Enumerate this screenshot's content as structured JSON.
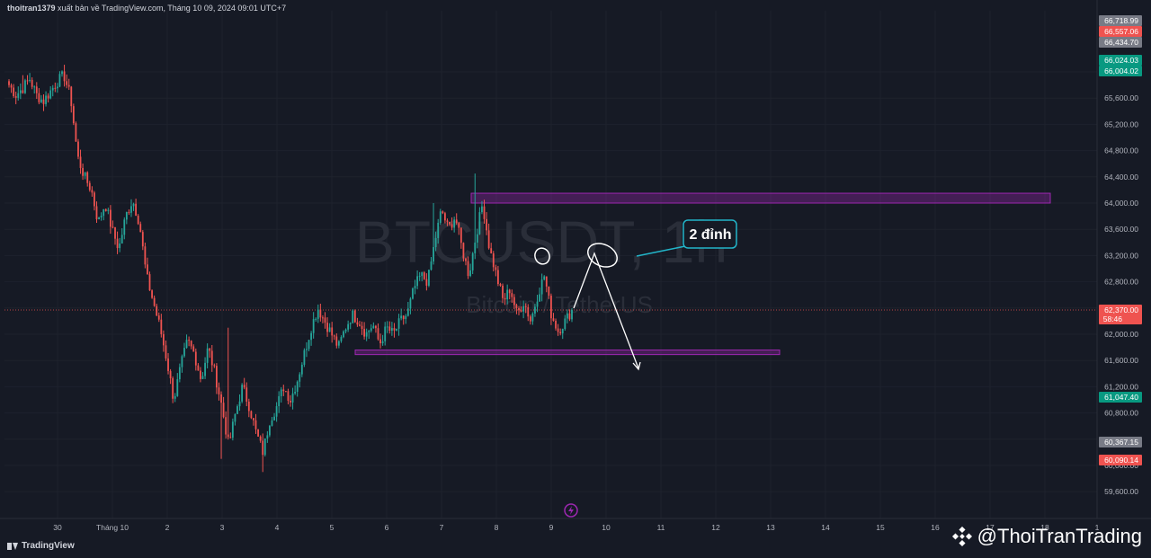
{
  "header": {
    "author": "thoitran1379",
    "text": "xuất bản về TradingView.com, Tháng 10 09, 2024 09:01 UTC+7"
  },
  "watermark": {
    "symbol": "BTCUSDT, 1h",
    "name": "Bitcoin / TetherUS"
  },
  "footer": {
    "platform": "TradingView",
    "handle": "@ThoiTranTrading"
  },
  "colors": {
    "background": "#161a25",
    "up": "#26a69a",
    "down": "#ef5350",
    "zone": "#9c27b0",
    "annotation": "#ffffff",
    "callout_border": "#22b5c9"
  },
  "annotation": {
    "label": "2 đỉnh"
  },
  "chart_data": {
    "type": "candlestick",
    "symbol": "BTCUSDT",
    "interval": "1h",
    "ylim": [
      59400,
      66800
    ],
    "y_ticks": [
      59600,
      60000,
      60400,
      60800,
      61200,
      61600,
      62000,
      62400,
      62800,
      63200,
      63600,
      64000,
      64400,
      64800,
      65200,
      65600,
      66000
    ],
    "y_tick_labels": [
      "59,600.00",
      "60,000.00",
      "60,400.00",
      "60,800.00",
      "61,200.00",
      "61,600.00",
      "62,000.00",
      "62,400.00",
      "62,800.00",
      "63,200.00",
      "63,600.00",
      "64,000.00",
      "64,400.00",
      "64,800.00",
      "65,200.00",
      "65,600.00",
      "66,000.00"
    ],
    "x_labels": [
      "30",
      "Tháng 10",
      "2",
      "3",
      "4",
      "5",
      "6",
      "7",
      "8",
      "9",
      "10",
      "11",
      "12",
      "13",
      "14",
      "15",
      "16",
      "17",
      "18",
      "1"
    ],
    "price_badges": [
      {
        "value": "66,718.99",
        "color": "#787b86"
      },
      {
        "value": "66,557.06",
        "color": "#ef5350"
      },
      {
        "value": "66,434.70",
        "color": "#787b86"
      },
      {
        "value": "66,024.03",
        "color": "#089981"
      },
      {
        "value": "66,004.02",
        "color": "#089981"
      },
      {
        "value": "62,370.00",
        "color": "#ef5350",
        "sub": "58:46"
      },
      {
        "value": "61,047.40",
        "color": "#089981"
      },
      {
        "value": "60,367.15",
        "color": "#787b86"
      },
      {
        "value": "60,090.14",
        "color": "#ef5350"
      }
    ],
    "current_price": 62370,
    "resistance_zone": [
      64000,
      64150
    ],
    "support_zone": [
      61690,
      61760
    ],
    "path": [
      [
        0,
        65800
      ],
      [
        1,
        65650
      ],
      [
        2,
        65750
      ],
      [
        3,
        65900
      ],
      [
        4,
        65650
      ],
      [
        5,
        65550
      ],
      [
        6,
        65700
      ],
      [
        7,
        65850
      ],
      [
        8,
        65950
      ],
      [
        9,
        65600
      ],
      [
        10,
        64700
      ],
      [
        11,
        64400
      ],
      [
        12,
        64200
      ],
      [
        13,
        63700
      ],
      [
        14,
        64000
      ],
      [
        15,
        63600
      ],
      [
        16,
        63300
      ],
      [
        17,
        63800
      ],
      [
        18,
        64050
      ],
      [
        19,
        63700
      ],
      [
        20,
        62900
      ],
      [
        21,
        62500
      ],
      [
        22,
        62100
      ],
      [
        23,
        61600
      ],
      [
        24,
        61000
      ],
      [
        25,
        61500
      ],
      [
        26,
        61900
      ],
      [
        27,
        61700
      ],
      [
        28,
        61300
      ],
      [
        29,
        61800
      ],
      [
        30,
        61400
      ],
      [
        31,
        60900
      ],
      [
        32,
        60300
      ],
      [
        33,
        60800
      ],
      [
        34,
        61200
      ],
      [
        35,
        60900
      ],
      [
        36,
        60500
      ],
      [
        37,
        60200
      ],
      [
        38,
        60700
      ],
      [
        39,
        60900
      ],
      [
        40,
        61200
      ],
      [
        41,
        61000
      ],
      [
        42,
        61300
      ],
      [
        43,
        61700
      ],
      [
        44,
        62100
      ],
      [
        45,
        62400
      ],
      [
        46,
        62200
      ],
      [
        47,
        62000
      ],
      [
        48,
        61800
      ],
      [
        49,
        62100
      ],
      [
        50,
        62300
      ],
      [
        51,
        62200
      ],
      [
        52,
        62000
      ],
      [
        53,
        62150
      ],
      [
        54,
        61850
      ],
      [
        55,
        62100
      ],
      [
        56,
        62000
      ],
      [
        57,
        62200
      ],
      [
        58,
        62300
      ],
      [
        59,
        62700
      ],
      [
        60,
        62900
      ],
      [
        61,
        62800
      ],
      [
        62,
        63400
      ],
      [
        63,
        63900
      ],
      [
        64,
        63600
      ],
      [
        65,
        63800
      ],
      [
        66,
        63300
      ],
      [
        67,
        62900
      ],
      [
        68,
        63500
      ],
      [
        69,
        64000
      ],
      [
        70,
        63300
      ],
      [
        71,
        62900
      ],
      [
        72,
        62500
      ],
      [
        73,
        62700
      ],
      [
        74,
        62300
      ],
      [
        75,
        62500
      ],
      [
        76,
        62200
      ],
      [
        77,
        62600
      ],
      [
        78,
        62900
      ],
      [
        79,
        62300
      ],
      [
        80,
        62050
      ],
      [
        81,
        62200
      ],
      [
        82,
        62370
      ]
    ],
    "spikes": [
      {
        "i": 68,
        "high": 64450
      },
      {
        "i": 62,
        "high": 64000
      },
      {
        "i": 31,
        "low": 60100
      },
      {
        "i": 32,
        "high": 62100
      },
      {
        "i": 37,
        "low": 59900
      },
      {
        "i": 2,
        "high": 65950
      }
    ],
    "annotation_label": "2 đỉnh"
  }
}
